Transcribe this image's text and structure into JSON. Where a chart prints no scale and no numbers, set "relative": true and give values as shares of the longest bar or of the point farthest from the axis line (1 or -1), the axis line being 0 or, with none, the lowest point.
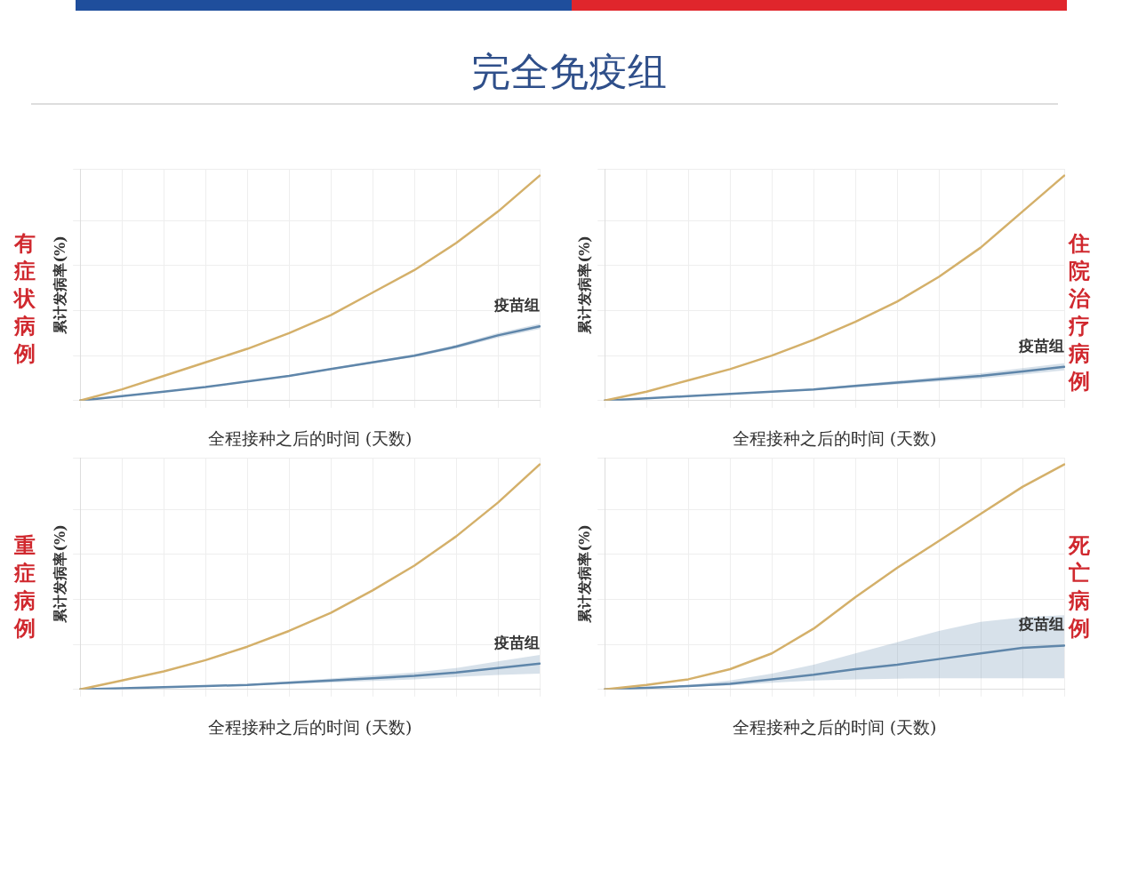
{
  "chart_data": [
    {
      "type": "other",
      "title": "完全免疫组"
    },
    {
      "type": "line",
      "title": "有症状病例",
      "xlabel": "全程接种之后的时间 (天数)",
      "ylabel": "累计发病率(%)",
      "relative": true,
      "grid": true,
      "marker": "none",
      "line_style": "solid",
      "categories": [
        null,
        null,
        null,
        null,
        null,
        null,
        null,
        null,
        null,
        null,
        null,
        null
      ],
      "series": [
        {
          "color": "#d4b06a",
          "values": [
            0,
            0.05,
            0.11,
            0.17,
            0.23,
            0.3,
            0.38,
            0.48,
            0.58,
            0.7,
            0.84,
            1.0
          ]
        },
        {
          "name": "疫苗组",
          "color": "#5f86aa",
          "values": [
            0,
            0.02,
            0.04,
            0.06,
            0.085,
            0.11,
            0.14,
            0.17,
            0.2,
            0.24,
            0.29,
            0.33
          ],
          "lower": [
            0,
            0.02,
            0.04,
            0.06,
            0.083,
            0.107,
            0.136,
            0.165,
            0.194,
            0.232,
            0.28,
            0.318
          ],
          "upper": [
            0,
            0.02,
            0.04,
            0.06,
            0.087,
            0.113,
            0.144,
            0.175,
            0.206,
            0.248,
            0.3,
            0.342
          ]
        }
      ]
    },
    {
      "type": "line",
      "title": "住院治疗病例",
      "xlabel": "全程接种之后的时间 (天数)",
      "ylabel": "累计发病率(%)",
      "relative": true,
      "grid": true,
      "marker": "none",
      "line_style": "solid",
      "categories": [
        null,
        null,
        null,
        null,
        null,
        null,
        null,
        null,
        null,
        null,
        null,
        null
      ],
      "series": [
        {
          "color": "#d4b06a",
          "values": [
            0,
            0.04,
            0.09,
            0.14,
            0.2,
            0.27,
            0.35,
            0.44,
            0.55,
            0.68,
            0.84,
            1.0
          ]
        },
        {
          "name": "疫苗组",
          "color": "#5f86aa",
          "values": [
            0,
            0.01,
            0.02,
            0.03,
            0.04,
            0.05,
            0.065,
            0.08,
            0.095,
            0.11,
            0.13,
            0.15
          ],
          "lower": [
            0,
            0.01,
            0.02,
            0.028,
            0.037,
            0.046,
            0.059,
            0.072,
            0.085,
            0.098,
            0.116,
            0.134
          ],
          "upper": [
            0,
            0.01,
            0.02,
            0.032,
            0.043,
            0.054,
            0.071,
            0.088,
            0.105,
            0.122,
            0.144,
            0.166
          ]
        }
      ]
    },
    {
      "type": "line",
      "title": "重症病例",
      "xlabel": "全程接种之后的时间 (天数)",
      "ylabel": "累计发病率(%)",
      "relative": true,
      "grid": true,
      "marker": "none",
      "line_style": "solid",
      "categories": [
        null,
        null,
        null,
        null,
        null,
        null,
        null,
        null,
        null,
        null,
        null,
        null
      ],
      "series": [
        {
          "color": "#d4b06a",
          "values": [
            0,
            0.04,
            0.08,
            0.13,
            0.19,
            0.26,
            0.34,
            0.44,
            0.55,
            0.68,
            0.83,
            1.0
          ]
        },
        {
          "name": "疫苗组",
          "color": "#5f86aa",
          "values": [
            0,
            0.005,
            0.01,
            0.015,
            0.02,
            0.03,
            0.04,
            0.05,
            0.06,
            0.075,
            0.095,
            0.115
          ],
          "lower": [
            0,
            0.005,
            0.009,
            0.013,
            0.017,
            0.024,
            0.031,
            0.038,
            0.045,
            0.055,
            0.064,
            0.07
          ],
          "upper": [
            0,
            0.005,
            0.011,
            0.017,
            0.023,
            0.036,
            0.049,
            0.062,
            0.075,
            0.095,
            0.125,
            0.153
          ]
        }
      ]
    },
    {
      "type": "line",
      "title": "死亡病例",
      "xlabel": "全程接种之后的时间 (天数)",
      "ylabel": "累计发病率(%)",
      "relative": true,
      "grid": true,
      "marker": "none",
      "line_style": "solid",
      "categories": [
        null,
        null,
        null,
        null,
        null,
        null,
        null,
        null,
        null,
        null,
        null,
        null
      ],
      "series": [
        {
          "color": "#d4b06a",
          "values": [
            0,
            0.02,
            0.045,
            0.09,
            0.16,
            0.27,
            0.41,
            0.54,
            0.66,
            0.78,
            0.9,
            1.0
          ]
        },
        {
          "name": "疫苗组",
          "color": "#5f86aa",
          "values": [
            0,
            0.007,
            0.015,
            0.025,
            0.045,
            0.065,
            0.09,
            0.11,
            0.135,
            0.16,
            0.185,
            0.195
          ],
          "lower": [
            0,
            0.007,
            0.012,
            0.018,
            0.03,
            0.04,
            0.045,
            0.048,
            0.05,
            0.05,
            0.05,
            0.05
          ],
          "upper": [
            0,
            0.007,
            0.02,
            0.04,
            0.07,
            0.11,
            0.16,
            0.21,
            0.26,
            0.3,
            0.32,
            0.33
          ]
        }
      ]
    }
  ]
}
